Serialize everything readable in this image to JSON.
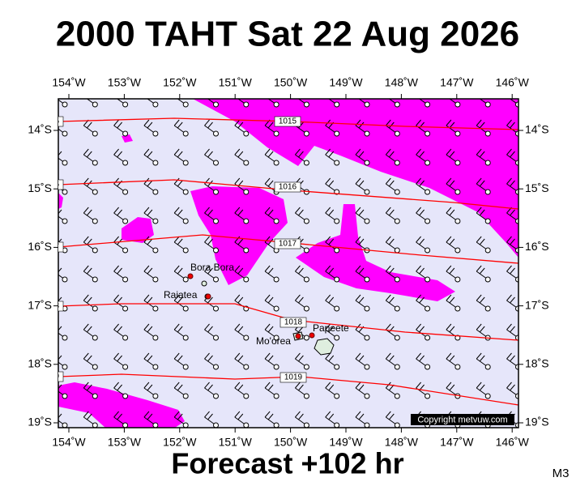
{
  "header": {
    "title": "2000 TAHT Sat 22 Aug 2026"
  },
  "map": {
    "lon_ticks": [
      {
        "value": 154,
        "label": "154˚W"
      },
      {
        "value": 153,
        "label": "153˚W"
      },
      {
        "value": 152,
        "label": "152˚W"
      },
      {
        "value": 151,
        "label": "151˚W"
      },
      {
        "value": 150,
        "label": "150˚W"
      },
      {
        "value": 149,
        "label": "149˚W"
      },
      {
        "value": 148,
        "label": "148˚W"
      },
      {
        "value": 147,
        "label": "147˚W"
      },
      {
        "value": 146,
        "label": "146˚W"
      }
    ],
    "lat_ticks": [
      {
        "value": 14,
        "label": "14˚S"
      },
      {
        "value": 15,
        "label": "15˚S"
      },
      {
        "value": 16,
        "label": "16˚S"
      },
      {
        "value": 17,
        "label": "17˚S"
      },
      {
        "value": 18,
        "label": "18˚S"
      },
      {
        "value": 19,
        "label": "19˚S"
      }
    ],
    "isobars": [
      1015,
      1016,
      1017,
      1018,
      1019
    ],
    "places": [
      "Bora Bora",
      "Raiatea",
      "Mo'orea",
      "Papeete"
    ],
    "copyright": "Copyright metvuw.com"
  },
  "footer": {
    "forecast": "Forecast +102 hr",
    "model": "M3"
  }
}
